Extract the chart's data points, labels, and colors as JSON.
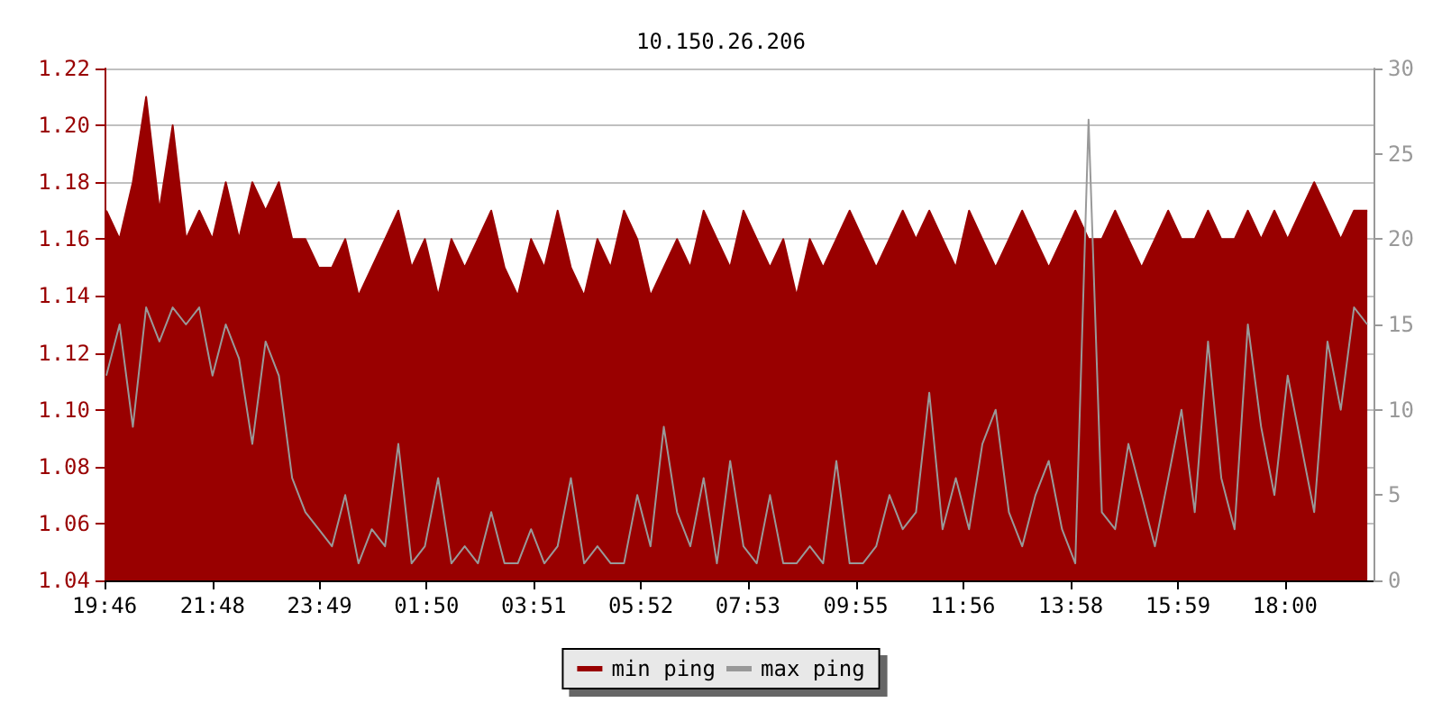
{
  "chart_data": {
    "type": "area",
    "title": "10.150.26.206",
    "x": [
      "2000-01-01T19:48",
      "2000-01-01T20:03",
      "2000-01-01T20:18",
      "2000-01-01T20:33",
      "2000-01-01T20:48",
      "2000-01-01T21:03",
      "2000-01-01T21:18",
      "2000-01-01T21:33",
      "2000-01-01T21:48",
      "2000-01-01T22:03",
      "2000-01-01T22:18",
      "2000-01-01T22:33",
      "2000-01-01T22:48",
      "2000-01-01T23:03",
      "2000-01-01T23:18",
      "2000-01-01T23:33",
      "2000-01-01T23:48",
      "2000-01-02T00:03",
      "2000-01-02T00:18",
      "2000-01-02T00:33",
      "2000-01-02T00:48",
      "2000-01-02T01:03",
      "2000-01-02T01:18",
      "2000-01-02T01:33",
      "2000-01-02T01:48",
      "2000-01-02T02:03",
      "2000-01-02T02:18",
      "2000-01-02T02:33",
      "2000-01-02T02:48",
      "2000-01-02T03:03",
      "2000-01-02T03:18",
      "2000-01-02T03:33",
      "2000-01-02T03:48",
      "2000-01-02T04:03",
      "2000-01-02T04:18",
      "2000-01-02T04:33",
      "2000-01-02T04:48",
      "2000-01-02T05:03",
      "2000-01-02T05:18",
      "2000-01-02T05:33",
      "2000-01-02T05:48",
      "2000-01-02T06:03",
      "2000-01-02T06:18",
      "2000-01-02T06:33",
      "2000-01-02T06:48",
      "2000-01-02T07:03",
      "2000-01-02T07:18",
      "2000-01-02T07:33",
      "2000-01-02T07:48",
      "2000-01-02T08:03",
      "2000-01-02T08:18",
      "2000-01-02T08:33",
      "2000-01-02T08:48",
      "2000-01-02T09:03",
      "2000-01-02T09:18",
      "2000-01-02T09:33",
      "2000-01-02T09:48",
      "2000-01-02T10:03",
      "2000-01-02T10:18",
      "2000-01-02T10:33",
      "2000-01-02T10:48",
      "2000-01-02T11:03",
      "2000-01-02T11:18",
      "2000-01-02T11:33",
      "2000-01-02T11:48",
      "2000-01-02T12:03",
      "2000-01-02T12:18",
      "2000-01-02T12:33",
      "2000-01-02T12:48",
      "2000-01-02T13:03",
      "2000-01-02T13:18",
      "2000-01-02T13:33",
      "2000-01-02T13:48",
      "2000-01-02T14:03",
      "2000-01-02T14:18",
      "2000-01-02T14:33",
      "2000-01-02T14:48",
      "2000-01-02T15:03",
      "2000-01-02T15:18",
      "2000-01-02T15:33",
      "2000-01-02T15:48",
      "2000-01-02T16:03",
      "2000-01-02T16:18",
      "2000-01-02T16:33",
      "2000-01-02T16:48",
      "2000-01-02T17:03",
      "2000-01-02T17:18",
      "2000-01-02T17:33",
      "2000-01-02T17:48",
      "2000-01-02T18:03",
      "2000-01-02T18:18",
      "2000-01-02T18:33",
      "2000-01-02T18:48",
      "2000-01-02T19:03",
      "2000-01-02T19:18",
      "2000-01-02T19:33"
    ],
    "series": [
      {
        "name": "min ping",
        "color": "#990000",
        "values": [
          1.17,
          1.16,
          1.18,
          1.21,
          1.17,
          1.2,
          1.16,
          1.17,
          1.16,
          1.18,
          1.16,
          1.18,
          1.17,
          1.18,
          1.16,
          1.16,
          1.15,
          1.15,
          1.16,
          1.14,
          1.15,
          1.16,
          1.17,
          1.15,
          1.16,
          1.14,
          1.16,
          1.15,
          1.16,
          1.17,
          1.15,
          1.14,
          1.16,
          1.15,
          1.17,
          1.15,
          1.14,
          1.16,
          1.15,
          1.17,
          1.16,
          1.14,
          1.15,
          1.16,
          1.15,
          1.17,
          1.16,
          1.15,
          1.17,
          1.16,
          1.15,
          1.16,
          1.14,
          1.16,
          1.15,
          1.16,
          1.17,
          1.16,
          1.15,
          1.16,
          1.17,
          1.16,
          1.17,
          1.16,
          1.15,
          1.17,
          1.16,
          1.15,
          1.16,
          1.17,
          1.16,
          1.15,
          1.16,
          1.17,
          1.16,
          1.16,
          1.17,
          1.16,
          1.15,
          1.16,
          1.17,
          1.16,
          1.16,
          1.17,
          1.16,
          1.16,
          1.17,
          1.16,
          1.17,
          1.16,
          1.17,
          1.18,
          1.17,
          1.16,
          1.17,
          1.17
        ]
      },
      {
        "name": "max ping",
        "type": "line",
        "axis": "y2",
        "color": "#999999",
        "values": [
          12,
          15,
          9,
          16,
          14,
          16,
          15,
          16,
          12,
          15,
          13,
          8,
          14,
          12,
          6,
          4,
          3,
          2,
          5,
          1,
          3,
          2,
          8,
          1,
          2,
          6,
          1,
          2,
          1,
          4,
          1,
          1,
          3,
          1,
          2,
          6,
          1,
          2,
          1,
          1,
          5,
          2,
          9,
          4,
          2,
          6,
          1,
          7,
          2,
          1,
          5,
          1,
          1,
          2,
          1,
          7,
          1,
          1,
          2,
          5,
          3,
          4,
          11,
          3,
          6,
          3,
          8,
          10,
          4,
          2,
          5,
          7,
          3,
          1,
          27,
          4,
          3,
          8,
          5,
          2,
          6,
          10,
          4,
          14,
          6,
          3,
          15,
          9,
          5,
          12,
          8,
          4,
          14,
          10,
          16,
          15
        ]
      }
    ],
    "xlim": [
      "2000-01-01T19:46",
      "2000-01-02T19:40"
    ],
    "xticks": [
      {
        "value": "2000-01-01T19:46",
        "label": "19:46"
      },
      {
        "value": "2000-01-01T21:48",
        "label": "21:48"
      },
      {
        "value": "2000-01-01T23:49",
        "label": "23:49"
      },
      {
        "value": "2000-01-02T01:50",
        "label": "01:50"
      },
      {
        "value": "2000-01-02T03:51",
        "label": "03:51"
      },
      {
        "value": "2000-01-02T05:52",
        "label": "05:52"
      },
      {
        "value": "2000-01-02T07:53",
        "label": "07:53"
      },
      {
        "value": "2000-01-02T09:55",
        "label": "09:55"
      },
      {
        "value": "2000-01-02T11:56",
        "label": "11:56"
      },
      {
        "value": "2000-01-02T13:58",
        "label": "13:58"
      },
      {
        "value": "2000-01-02T15:59",
        "label": "15:59"
      },
      {
        "value": "2000-01-02T18:00",
        "label": "18:00"
      }
    ],
    "ylim": [
      1.04,
      1.22
    ],
    "yticks": [
      {
        "value": 1.04,
        "label": "1.04"
      },
      {
        "value": 1.06,
        "label": "1.06"
      },
      {
        "value": 1.08,
        "label": "1.08"
      },
      {
        "value": 1.1,
        "label": "1.10"
      },
      {
        "value": 1.12,
        "label": "1.12"
      },
      {
        "value": 1.14,
        "label": "1.14"
      },
      {
        "value": 1.16,
        "label": "1.16"
      },
      {
        "value": 1.18,
        "label": "1.18"
      },
      {
        "value": 1.2,
        "label": "1.20"
      },
      {
        "value": 1.22,
        "label": "1.22"
      }
    ],
    "y2lim": [
      0,
      30
    ],
    "y2ticks": [
      0,
      5,
      10,
      15,
      20,
      25,
      30
    ],
    "grid": "y",
    "legend": "bottom"
  }
}
